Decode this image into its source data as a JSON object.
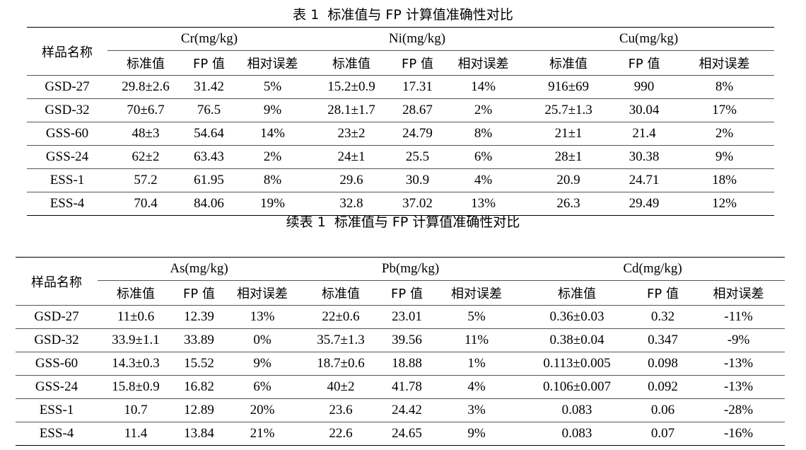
{
  "table1": {
    "caption": "表 1  标准值与 FP 计算值准确性对比",
    "sample_header": "样品名称",
    "groups": [
      "Cr(mg/kg)",
      "Ni(mg/kg)",
      "Cu(mg/kg)"
    ],
    "subheaders": [
      "标准值",
      "FP 值",
      "相对误差"
    ],
    "rows": [
      [
        "GSD-27",
        "29.8±2.6",
        "31.42",
        "5%",
        "15.2±0.9",
        "17.31",
        "14%",
        "916±69",
        "990",
        "8%"
      ],
      [
        "GSD-32",
        "70±6.7",
        "76.5",
        "9%",
        "28.1±1.7",
        "28.67",
        "2%",
        "25.7±1.3",
        "30.04",
        "17%"
      ],
      [
        "GSS-60",
        "48±3",
        "54.64",
        "14%",
        "23±2",
        "24.79",
        "8%",
        "21±1",
        "21.4",
        "2%"
      ],
      [
        "GSS-24",
        "62±2",
        "63.43",
        "2%",
        "24±1",
        "25.5",
        "6%",
        "28±1",
        "30.38",
        "9%"
      ],
      [
        "ESS-1",
        "57.2",
        "61.95",
        "8%",
        "29.6",
        "30.9",
        "4%",
        "20.9",
        "24.71",
        "18%"
      ],
      [
        "ESS-4",
        "70.4",
        "84.06",
        "19%",
        "32.8",
        "37.02",
        "13%",
        "26.3",
        "29.49",
        "12%"
      ]
    ]
  },
  "table2": {
    "caption": "续表 1  标准值与 FP 计算值准确性对比",
    "sample_header": "样品名称",
    "groups": [
      "As(mg/kg)",
      "Pb(mg/kg)",
      "Cd(mg/kg)"
    ],
    "subheaders": [
      "标准值",
      "FP 值",
      "相对误差"
    ],
    "rows": [
      [
        "GSD-27",
        "11±0.6",
        "12.39",
        "13%",
        "22±0.6",
        "23.01",
        "5%",
        "0.36±0.03",
        "0.32",
        "-11%"
      ],
      [
        "GSD-32",
        "33.9±1.1",
        "33.89",
        "0%",
        "35.7±1.3",
        "39.56",
        "11%",
        "0.38±0.04",
        "0.347",
        "-9%"
      ],
      [
        "GSS-60",
        "14.3±0.3",
        "15.52",
        "9%",
        "18.7±0.6",
        "18.88",
        "1%",
        "0.113±0.005",
        "0.098",
        "-13%"
      ],
      [
        "GSS-24",
        "15.8±0.9",
        "16.82",
        "6%",
        "40±2",
        "41.78",
        "4%",
        "0.106±0.007",
        "0.092",
        "-13%"
      ],
      [
        "ESS-1",
        "10.7",
        "12.89",
        "20%",
        "23.6",
        "24.42",
        "3%",
        "0.083",
        "0.06",
        "-28%"
      ],
      [
        "ESS-4",
        "11.4",
        "13.84",
        "21%",
        "22.6",
        "24.65",
        "9%",
        "0.083",
        "0.07",
        "-16%"
      ]
    ]
  }
}
